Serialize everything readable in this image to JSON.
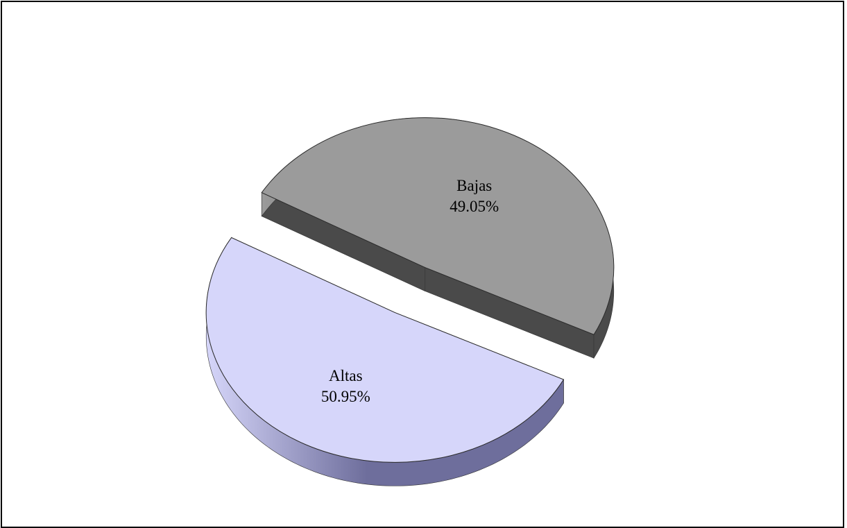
{
  "chart_data": {
    "type": "pie",
    "style": "3d-exploded",
    "slices": [
      {
        "label": "Bajas",
        "value": 49.05,
        "display": "49.05%",
        "top_color": "#9b9b9b",
        "side_color": "#4a4a4a"
      },
      {
        "label": "Altas",
        "value": 50.95,
        "display": "50.95%",
        "top_color": "#d6d6fa",
        "side_color": "#6e6e9c"
      }
    ],
    "legend": "none",
    "title": ""
  }
}
